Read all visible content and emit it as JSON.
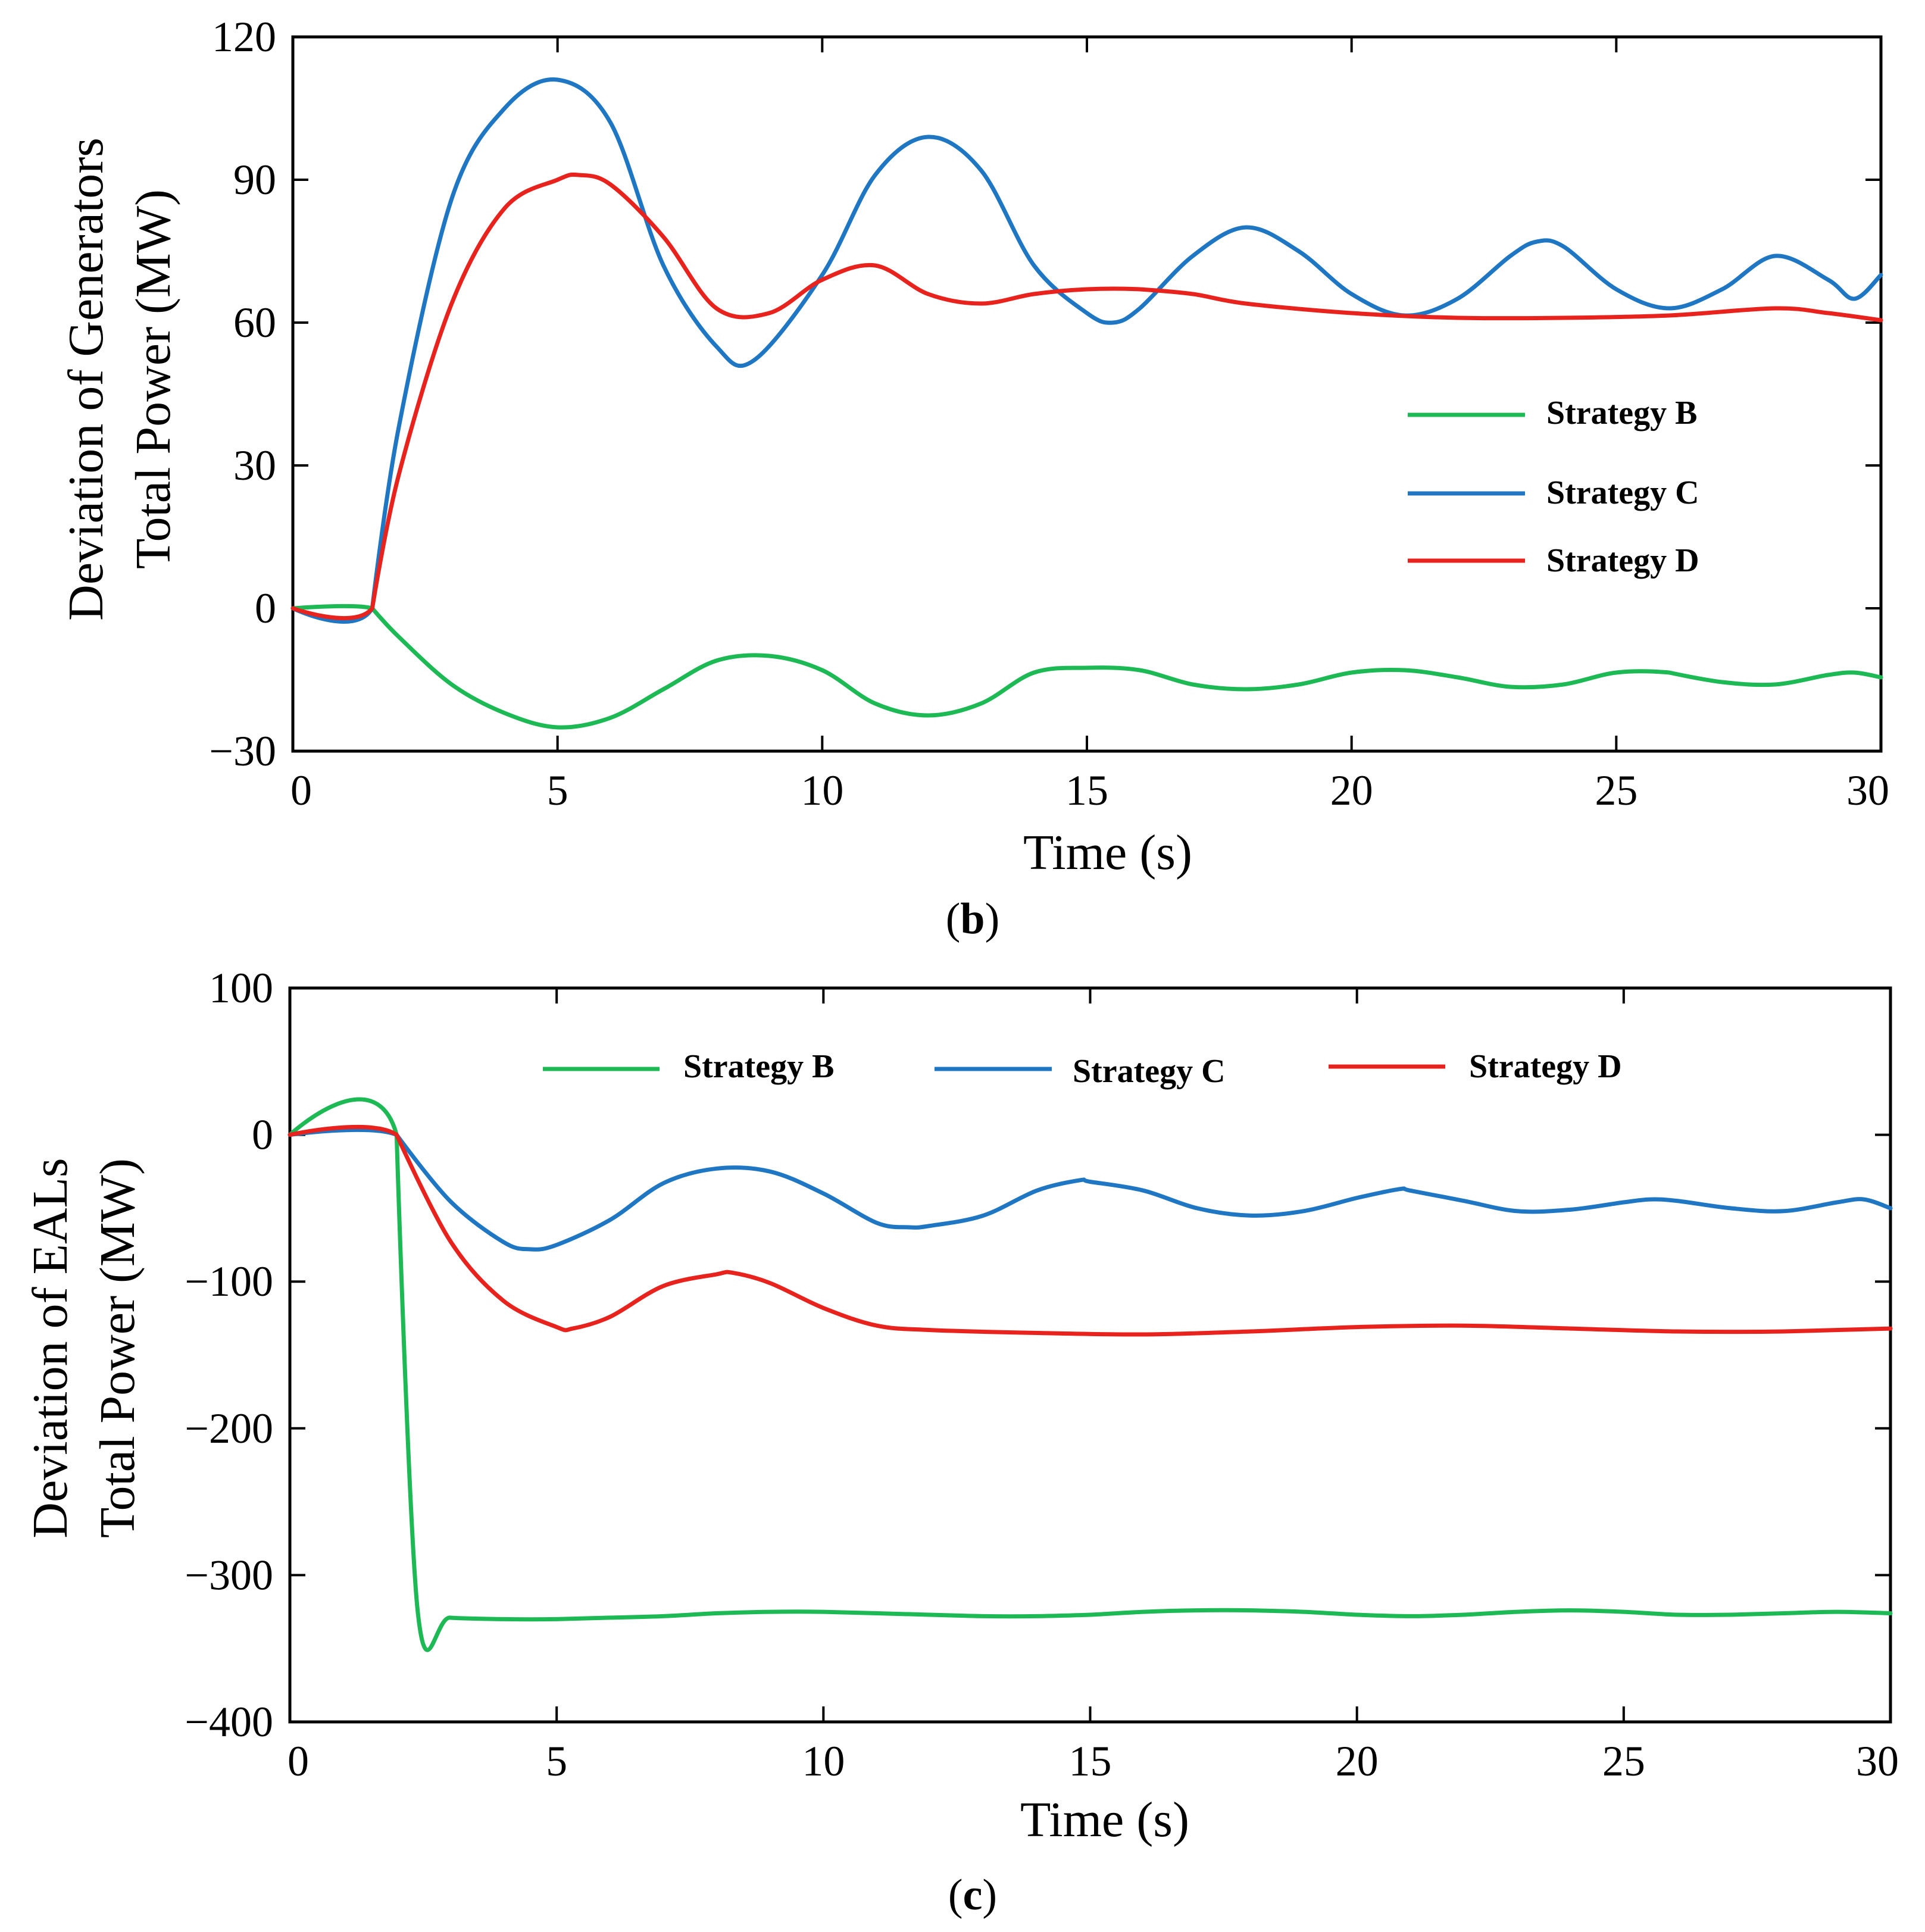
{
  "chart_data": [
    {
      "type": "line",
      "caption": "(b)",
      "caption_open": "(",
      "caption_letter": "b",
      "caption_close": ")",
      "xlabel": "Time (s)",
      "ylabel_line1": "Deviation of Generators",
      "ylabel_line2": "Total Power (MW)",
      "xlim": [
        0,
        30
      ],
      "ylim": [
        -30,
        120
      ],
      "xticks": [
        0,
        5,
        10,
        15,
        20,
        25,
        30
      ],
      "yticks": [
        -30,
        0,
        30,
        60,
        90,
        120
      ],
      "ytick_labels": [
        "−30",
        "0",
        "30",
        "60",
        "90",
        "120"
      ],
      "legend": {
        "placement": "right"
      },
      "series": [
        {
          "name": "Strategy B",
          "color": "#1db954",
          "x": [
            0,
            1.5,
            2,
            3,
            4,
            5,
            6,
            7,
            8,
            9,
            10,
            11,
            12,
            13,
            14,
            15,
            16,
            17,
            18,
            19,
            20,
            21,
            22,
            23,
            24,
            25,
            26,
            27,
            28,
            29,
            29.5,
            30
          ],
          "y": [
            0,
            0,
            -6,
            -16,
            -22,
            -25,
            -23,
            -17,
            -11,
            -10,
            -13,
            -20,
            -22.5,
            -20,
            -13.5,
            -12.5,
            -13,
            -16,
            -17,
            -16,
            -13.5,
            -13,
            -14.5,
            -16.5,
            -16,
            -13.5,
            -13.5,
            -15.5,
            -16,
            -14,
            -13.5,
            -14.5
          ]
        },
        {
          "name": "Strategy C",
          "color": "#1f77c4",
          "x": [
            0,
            1.5,
            2,
            3,
            4,
            5,
            6,
            7,
            8,
            8.7,
            10,
            11,
            12,
            13,
            14,
            15,
            15.5,
            16,
            17,
            18,
            19,
            20,
            21,
            22,
            23,
            23.5,
            24,
            25,
            26,
            27,
            28,
            29,
            29.5,
            30
          ],
          "y": [
            0,
            0,
            38,
            86,
            105,
            111,
            102,
            72,
            55,
            52,
            70,
            91,
            99,
            92,
            72,
            62,
            60,
            63,
            74,
            80,
            75,
            66,
            61.5,
            65,
            74,
            77,
            76,
            67,
            63,
            67,
            74,
            69,
            65,
            70
          ]
        },
        {
          "name": "Strategy D",
          "color": "#e8231e",
          "x": [
            0,
            1.5,
            2,
            3,
            4,
            5,
            5.4,
            6,
            7,
            8,
            9,
            10,
            11,
            12,
            13,
            14,
            15,
            16,
            17,
            18,
            20,
            22,
            24,
            26,
            28,
            29,
            30
          ],
          "y": [
            0,
            0,
            28,
            64,
            84,
            90,
            91,
            89,
            78,
            63,
            62,
            69,
            72,
            66,
            64,
            66,
            67,
            67,
            66,
            64,
            62,
            61,
            61,
            61.5,
            63,
            62,
            60.5
          ]
        }
      ]
    },
    {
      "type": "line",
      "caption": "(c)",
      "caption_open": "(",
      "caption_letter": "c",
      "caption_close": ")",
      "xlabel": "Time (s)",
      "ylabel_line1": "Deviation of EALs",
      "ylabel_line2": "Total Power (MW)",
      "xlim": [
        0,
        30
      ],
      "ylim": [
        -400,
        100
      ],
      "xticks": [
        0,
        5,
        10,
        15,
        20,
        25,
        30
      ],
      "yticks": [
        -400,
        -300,
        -200,
        -100,
        0,
        100
      ],
      "ytick_labels": [
        "−400",
        "−300",
        "−200",
        "−100",
        "0",
        "100"
      ],
      "legend": {
        "placement": "top"
      },
      "series": [
        {
          "name": "Strategy B",
          "color": "#1db954",
          "x": [
            0,
            2,
            2.4,
            3,
            4,
            5,
            6,
            7,
            8,
            9,
            10,
            11,
            12,
            13,
            14,
            15,
            16,
            17,
            18,
            19,
            20,
            21,
            22,
            23,
            24,
            25,
            26,
            27,
            28,
            29,
            30
          ],
          "y": [
            0,
            0,
            -326,
            -329,
            -330,
            -330,
            -329,
            -328,
            -326,
            -325,
            -325,
            -326,
            -327,
            -328,
            -328,
            -327,
            -325,
            -324,
            -324,
            -325,
            -327,
            -328,
            -327,
            -325,
            -324,
            -325,
            -327,
            -327,
            -326,
            -325,
            -326
          ]
        },
        {
          "name": "Strategy C",
          "color": "#1f77c4",
          "x": [
            0,
            2,
            3,
            4,
            4.5,
            5,
            6,
            7,
            8,
            9,
            10,
            11,
            11.6,
            12,
            13,
            14,
            14.8,
            15,
            16,
            17,
            18,
            19,
            20,
            20.8,
            21,
            22,
            23,
            24,
            25,
            25.5,
            26,
            27,
            28,
            29,
            29.5,
            30
          ],
          "y": [
            0,
            0,
            -45,
            -73,
            -78,
            -75,
            -58,
            -33,
            -23,
            -25,
            -40,
            -60,
            -63,
            -62,
            -55,
            -38,
            -31,
            -32,
            -38,
            -50,
            -55,
            -52,
            -43,
            -37,
            -38,
            -45,
            -52,
            -51,
            -46,
            -44,
            -45,
            -50,
            -52,
            -46,
            -44,
            -50
          ]
        },
        {
          "name": "Strategy D",
          "color": "#e8231e",
          "x": [
            0,
            2,
            3,
            4,
            5,
            5.3,
            6,
            7,
            8,
            8.3,
            9,
            10,
            11,
            12,
            14,
            16,
            18,
            20,
            22,
            24,
            26,
            28,
            30
          ],
          "y": [
            0,
            0,
            -72,
            -113,
            -131,
            -132,
            -124,
            -103,
            -95,
            -94,
            -101,
            -118,
            -130,
            -133,
            -135,
            -136,
            -134,
            -131,
            -130,
            -132,
            -134,
            -134,
            -132
          ]
        }
      ]
    }
  ]
}
